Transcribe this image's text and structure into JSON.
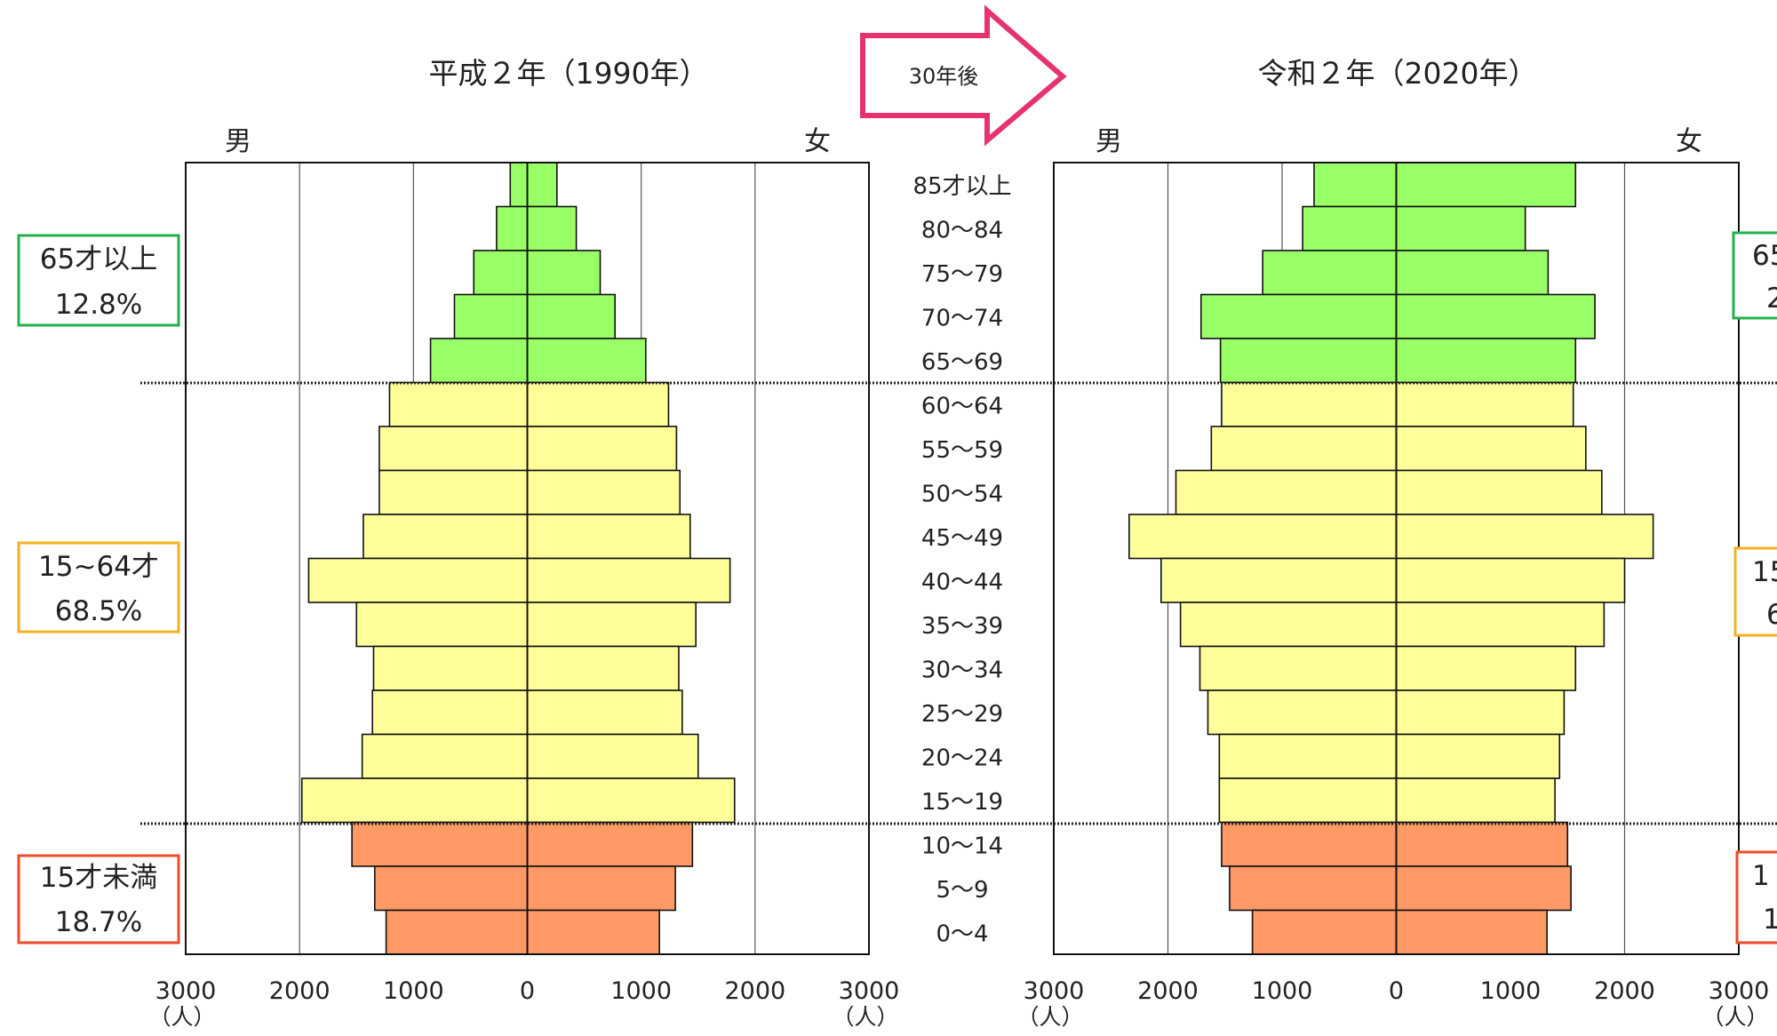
{
  "arrow_label": "30年後",
  "center_age_labels": [
    "85才以上",
    "80～84",
    "75～79",
    "70～74",
    "65～69",
    "60～64",
    "55～59",
    "50～54",
    "45～49",
    "40～44",
    "35～39",
    "30～34",
    "25～29",
    "20～24",
    "15～19",
    "10～14",
    "5～9",
    "0～4"
  ],
  "colors": {
    "elderly": "#99ff66",
    "working": "#ffff99",
    "young": "#ff9966",
    "arrow": "#e6336e",
    "box_elderly": "#22b04b",
    "box_working": "#f5b120",
    "box_young": "#ee4b2b"
  },
  "chart_data": [
    {
      "type": "bar",
      "title": "平成２年（1990年）",
      "male_label": "男",
      "female_label": "女",
      "unit": "（人）",
      "x_ticks": [
        "3000",
        "2000",
        "1000",
        "0",
        "1000",
        "2000",
        "3000"
      ],
      "xlim": [
        -3000,
        3000
      ],
      "categories": [
        "85才以上",
        "80～84",
        "75～79",
        "70～74",
        "65～69",
        "60～64",
        "55～59",
        "50～54",
        "45～49",
        "40～44",
        "35～39",
        "30～34",
        "25～29",
        "20～24",
        "15～19",
        "10～14",
        "5～9",
        "0～4"
      ],
      "series": [
        {
          "name": "男",
          "values": [
            150,
            270,
            470,
            640,
            850,
            1210,
            1300,
            1300,
            1440,
            1920,
            1500,
            1350,
            1360,
            1450,
            1980,
            1540,
            1340,
            1240
          ]
        },
        {
          "name": "女",
          "values": [
            260,
            430,
            640,
            770,
            1040,
            1240,
            1310,
            1340,
            1430,
            1780,
            1480,
            1330,
            1360,
            1500,
            1820,
            1450,
            1300,
            1160
          ]
        }
      ],
      "groups": [
        {
          "label": "65才以上",
          "pct": "12.8%"
        },
        {
          "label": "15~64才",
          "pct": "68.5%"
        },
        {
          "label": "15才未満",
          "pct": "18.7%"
        }
      ]
    },
    {
      "type": "bar",
      "title": "令和２年（2020年）",
      "male_label": "男",
      "female_label": "女",
      "unit": "（人）",
      "x_ticks": [
        "3000",
        "2000",
        "1000",
        "0",
        "1000",
        "2000",
        "3000"
      ],
      "xlim": [
        -3000,
        3000
      ],
      "categories": [
        "85才以上",
        "80～84",
        "75～79",
        "70～74",
        "65～69",
        "60～64",
        "55～59",
        "50～54",
        "45～49",
        "40～44",
        "35～39",
        "30～34",
        "25～29",
        "20～24",
        "15～19",
        "10～14",
        "5～9",
        "0～4"
      ],
      "series": [
        {
          "name": "男",
          "values": [
            720,
            820,
            1170,
            1710,
            1540,
            1530,
            1620,
            1930,
            2340,
            2060,
            1890,
            1720,
            1650,
            1550,
            1550,
            1530,
            1460,
            1260
          ]
        },
        {
          "name": "女",
          "values": [
            1570,
            1130,
            1330,
            1740,
            1570,
            1550,
            1660,
            1800,
            2250,
            2000,
            1820,
            1570,
            1470,
            1430,
            1390,
            1500,
            1530,
            1320
          ]
        }
      ],
      "groups": [
        {
          "label": "65",
          "pct": "2"
        },
        {
          "label": "15",
          "pct": "6"
        },
        {
          "label": "1",
          "pct": "1"
        }
      ]
    }
  ]
}
